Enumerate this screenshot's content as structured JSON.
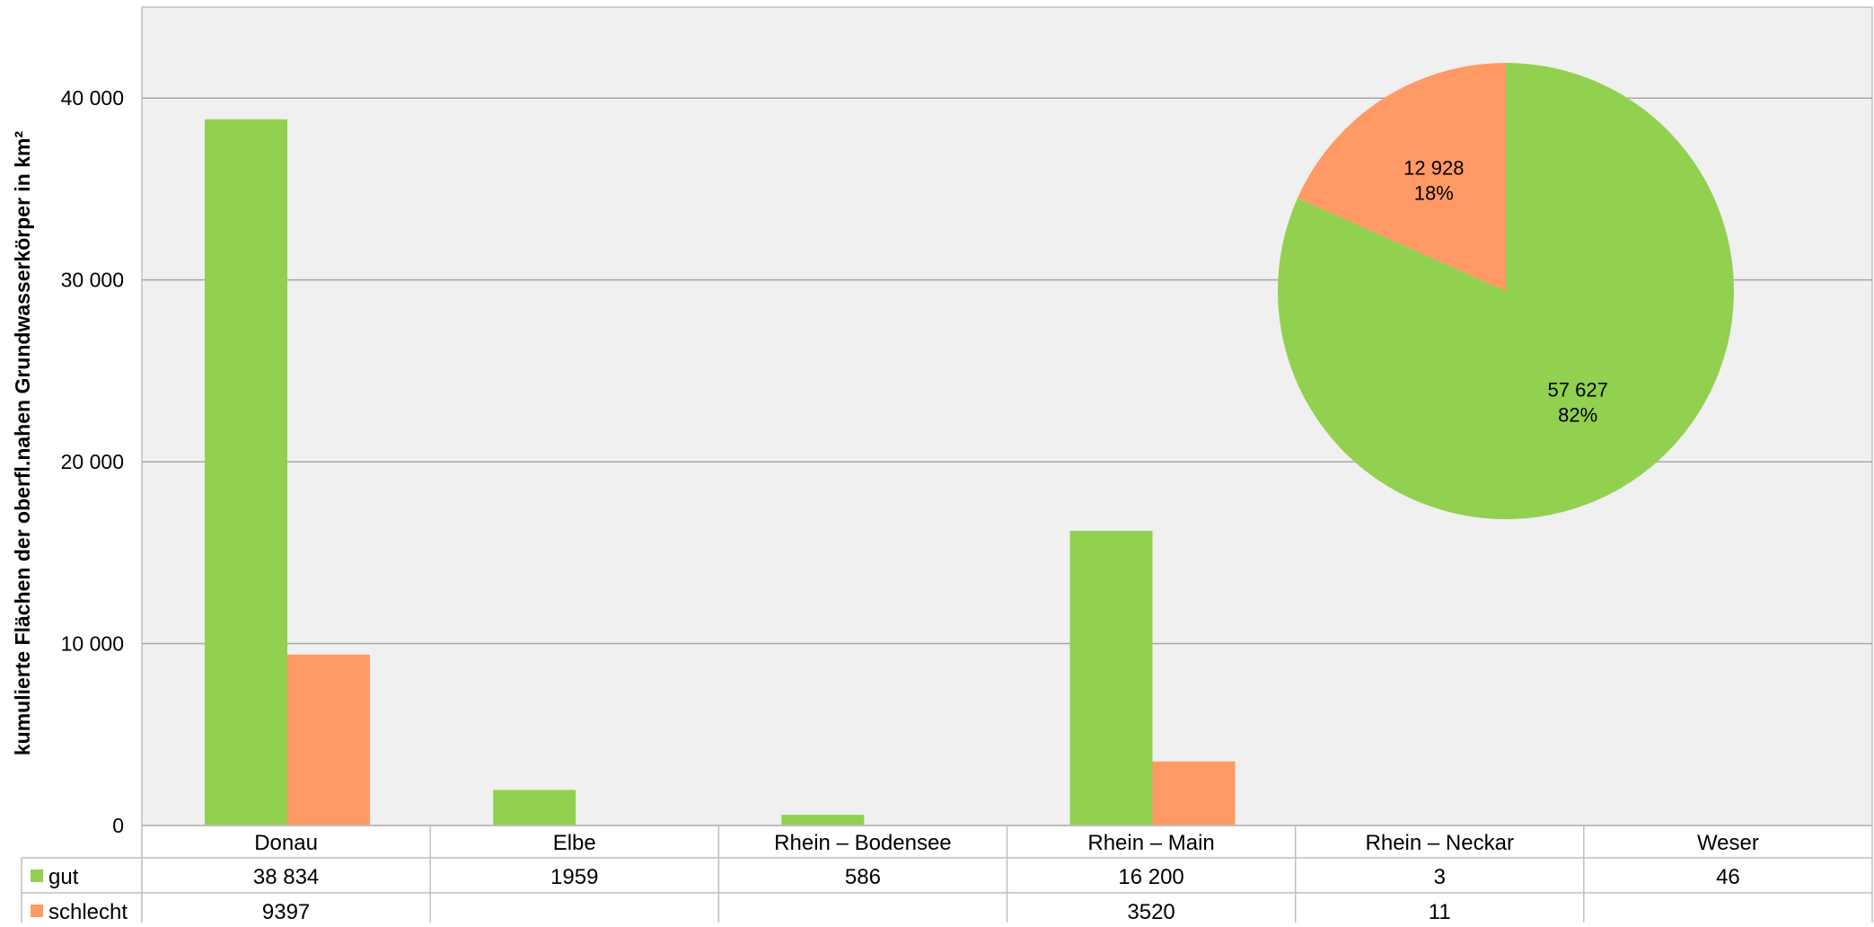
{
  "chart_data": [
    {
      "type": "bar",
      "ylabel": "kumulierte Flächen der oberfl.nahen Grundwasserkörper in km²",
      "ylim": [
        0,
        45000
      ],
      "yticks": [
        0,
        10000,
        20000,
        30000,
        40000
      ],
      "ytick_labels": [
        "0",
        "10 000",
        "20 000",
        "30 000",
        "40 000"
      ],
      "grid": true,
      "categories": [
        "Donau",
        "Elbe",
        "Rhein – Bodensee",
        "Rhein – Main",
        "Rhein – Neckar",
        "Weser"
      ],
      "series": [
        {
          "name": "gut",
          "color": "#92D050",
          "values": [
            38834,
            1959,
            586,
            16200,
            3,
            46
          ],
          "table_labels": [
            "38 834",
            "1959",
            "586",
            "16 200",
            "3",
            "46"
          ]
        },
        {
          "name": "schlecht",
          "color": "#FF9966",
          "values": [
            9397,
            0,
            0,
            3520,
            11,
            0
          ],
          "table_labels": [
            "9397",
            "",
            "",
            "3520",
            "11",
            ""
          ]
        }
      ],
      "legend": "data-table"
    },
    {
      "type": "pie",
      "slices": [
        {
          "value": 57627,
          "percent": 82,
          "value_label": "57 627",
          "percent_label": "82%",
          "color": "#92D050"
        },
        {
          "value": 12928,
          "percent": 18,
          "value_label": "12 928",
          "percent_label": "18%",
          "color": "#FF9966"
        }
      ]
    }
  ],
  "colors": {
    "plot_background": "#F0F0F0",
    "gridline": "#A6A6A6",
    "border": "#BFBFBF"
  }
}
